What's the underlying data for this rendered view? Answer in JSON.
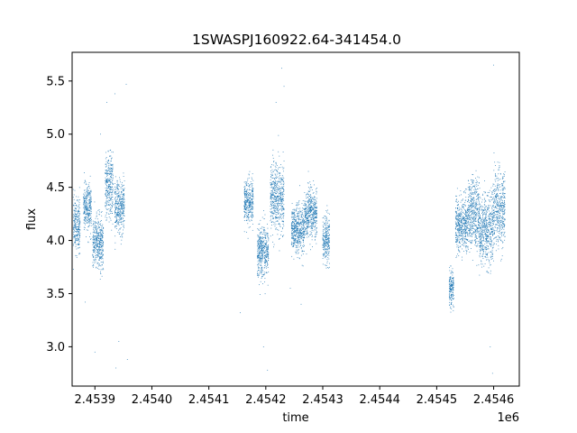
{
  "chart_data": {
    "type": "scatter",
    "title": "1SWASPJ160922.64-341454.0",
    "xlabel": "time",
    "ylabel": "flux",
    "x_offset_label": "1e6",
    "x_ticks": [
      2453900,
      2454000,
      2454100,
      2454200,
      2454300,
      2454400,
      2454500,
      2454600
    ],
    "x_tick_labels": [
      "2.4539",
      "2.4540",
      "2.4541",
      "2.4542",
      "2.4543",
      "2.4544",
      "2.4545",
      "2.4546"
    ],
    "y_ticks": [
      3.0,
      3.5,
      4.0,
      4.5,
      5.0,
      5.5
    ],
    "y_tick_labels": [
      "3.0",
      "3.5",
      "4.0",
      "4.5",
      "5.0",
      "5.5"
    ],
    "xlim": [
      2453860,
      2454645
    ],
    "ylim": [
      2.63,
      5.77
    ],
    "grid": false,
    "marker_color": "#1f77b4",
    "series": [
      {
        "clusters": [
          {
            "x": [
              2453862,
              2453874
            ],
            "y_center": 4.15,
            "y_spread": 0.22
          },
          {
            "x": [
              2453880,
              2453894
            ],
            "y_center": 4.3,
            "y_spread": 0.2
          },
          {
            "x": [
              2453896,
              2453915
            ],
            "y_center": 3.98,
            "y_spread": 0.22
          },
          {
            "x": [
              2453918,
              2453932
            ],
            "y_center": 4.5,
            "y_spread": 0.28
          },
          {
            "x": [
              2453935,
              2453952
            ],
            "y_center": 4.32,
            "y_spread": 0.22
          },
          {
            "x": [
              2454162,
              2454178
            ],
            "y_center": 4.35,
            "y_spread": 0.2
          },
          {
            "x": [
              2454185,
              2454205
            ],
            "y_center": 3.9,
            "y_spread": 0.22
          },
          {
            "x": [
              2454208,
              2454232
            ],
            "y_center": 4.4,
            "y_spread": 0.3
          },
          {
            "x": [
              2454245,
              2454268
            ],
            "y_center": 4.1,
            "y_spread": 0.2
          },
          {
            "x": [
              2454268,
              2454290
            ],
            "y_center": 4.25,
            "y_spread": 0.22
          },
          {
            "x": [
              2454300,
              2454312
            ],
            "y_center": 4.0,
            "y_spread": 0.2
          },
          {
            "x": [
              2454522,
              2454530
            ],
            "y_center": 3.55,
            "y_spread": 0.15
          },
          {
            "x": [
              2454533,
              2454555
            ],
            "y_center": 4.15,
            "y_spread": 0.22
          },
          {
            "x": [
              2454555,
              2454575
            ],
            "y_center": 4.25,
            "y_spread": 0.3
          },
          {
            "x": [
              2454575,
              2454600
            ],
            "y_center": 4.1,
            "y_spread": 0.3
          },
          {
            "x": [
              2454600,
              2454620
            ],
            "y_center": 4.3,
            "y_spread": 0.32
          }
        ],
        "outliers": [
          {
            "x": 2453883,
            "y": 3.42
          },
          {
            "x": 2453900,
            "y": 2.95
          },
          {
            "x": 2453910,
            "y": 5.0
          },
          {
            "x": 2453921,
            "y": 5.3
          },
          {
            "x": 2453935,
            "y": 5.38
          },
          {
            "x": 2453937,
            "y": 2.8
          },
          {
            "x": 2453942,
            "y": 3.05
          },
          {
            "x": 2453955,
            "y": 5.47
          },
          {
            "x": 2453957,
            "y": 2.88
          },
          {
            "x": 2454155,
            "y": 3.32
          },
          {
            "x": 2454196,
            "y": 3.0
          },
          {
            "x": 2454203,
            "y": 2.78
          },
          {
            "x": 2454218,
            "y": 5.3
          },
          {
            "x": 2454228,
            "y": 5.62
          },
          {
            "x": 2454232,
            "y": 5.45
          },
          {
            "x": 2454243,
            "y": 3.55
          },
          {
            "x": 2454262,
            "y": 3.4
          },
          {
            "x": 2454594,
            "y": 3.0
          },
          {
            "x": 2454598,
            "y": 2.75
          },
          {
            "x": 2454600,
            "y": 5.65
          }
        ]
      }
    ]
  }
}
